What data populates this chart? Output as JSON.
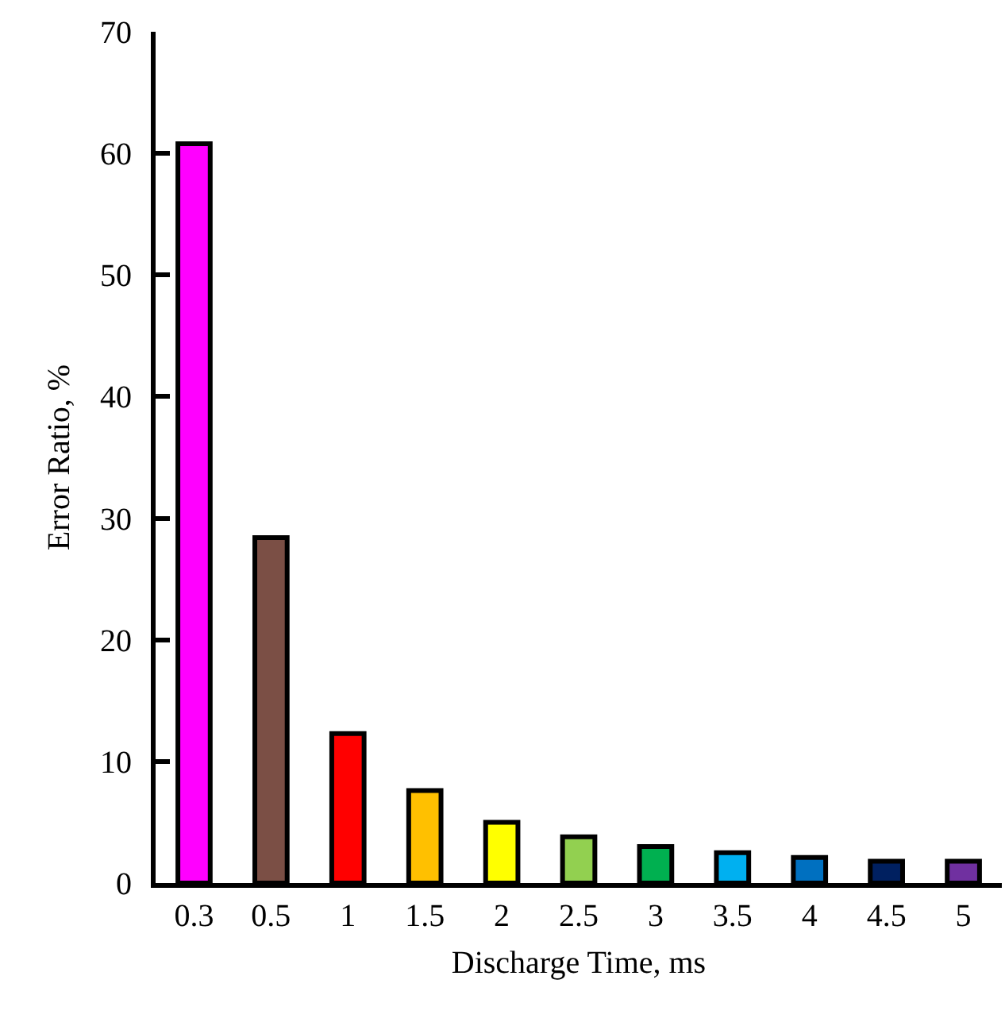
{
  "chart_data": {
    "type": "bar",
    "xlabel": "Discharge Time, ms",
    "ylabel": "Error Ratio, %",
    "categories": [
      "0.3",
      "0.5",
      "1",
      "1.5",
      "2",
      "2.5",
      "3",
      "3.5",
      "4",
      "4.5",
      "5"
    ],
    "values": [
      60.8,
      28.4,
      12.3,
      7.6,
      5.0,
      3.8,
      3.0,
      2.5,
      2.1,
      1.8,
      1.8
    ],
    "colors": [
      "#ff00ff",
      "#7b4f45",
      "#ff0000",
      "#ffc000",
      "#ffff00",
      "#92d050",
      "#00b050",
      "#00b0f0",
      "#0070c0",
      "#002060",
      "#7030a0"
    ],
    "ylim": [
      0,
      70
    ],
    "yticks": [
      0,
      10,
      20,
      30,
      40,
      50,
      60,
      70
    ],
    "grid": false,
    "legend": false
  }
}
